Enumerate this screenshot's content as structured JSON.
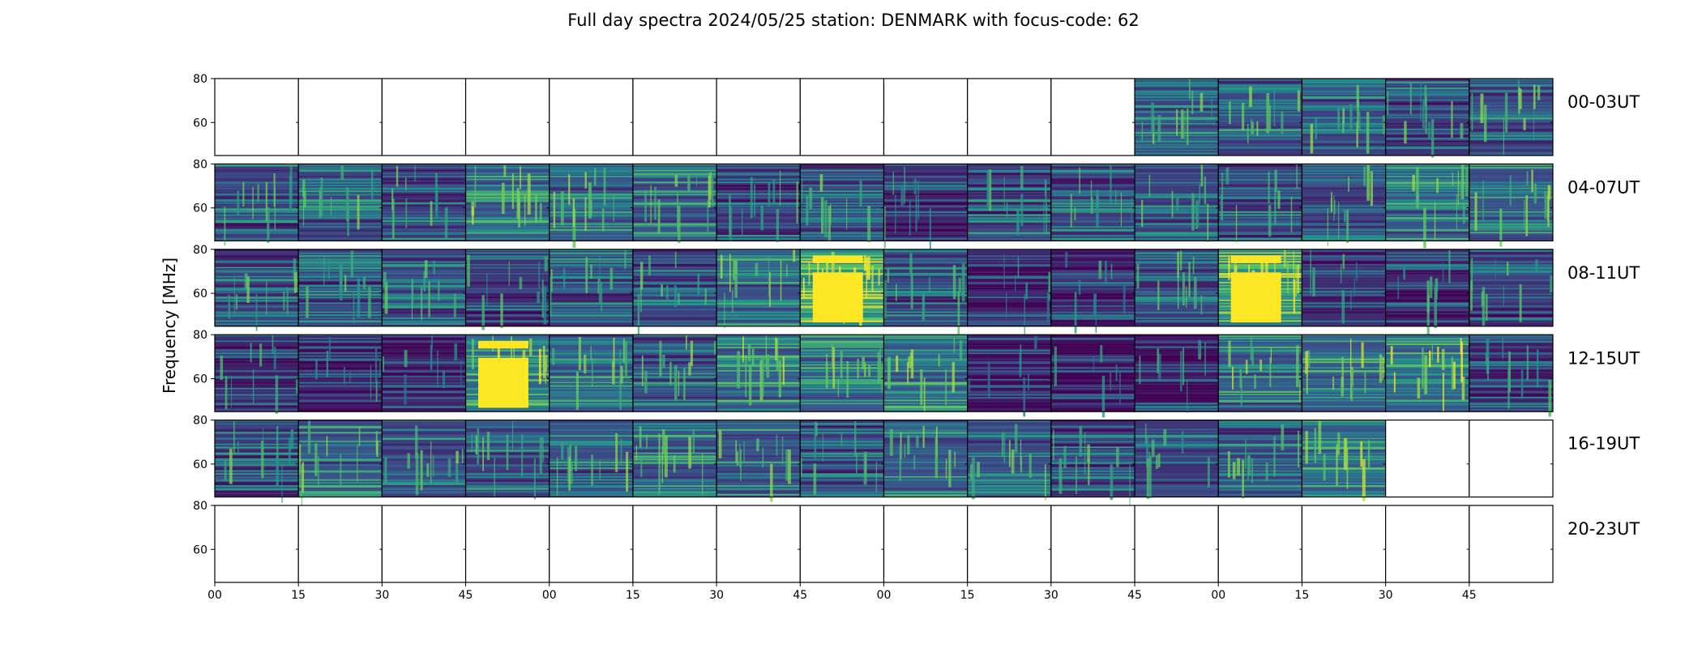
{
  "chart_data": {
    "type": "heatmap",
    "title": "Full day spectra 2024/05/25 station: DENMARK with focus-code: 62",
    "ylabel": "Frequency [MHz]",
    "xlabel": "",
    "ylim": [
      45,
      80
    ],
    "y_ticks": [
      60,
      80
    ],
    "x_ticks": [
      "00",
      "15",
      "30",
      "45",
      "00",
      "15",
      "30",
      "45",
      "00",
      "15",
      "30",
      "45",
      "00",
      "15",
      "30",
      "45"
    ],
    "colormap": [
      "#440154",
      "#3b528b",
      "#21918c",
      "#5ec962",
      "#fde725"
    ],
    "row_labels": [
      "00-03UT",
      "04-07UT",
      "08-11UT",
      "12-15UT",
      "16-19UT",
      "20-23UT"
    ],
    "panel_minutes": 15,
    "panels": [
      [
        null,
        null,
        null,
        null,
        null,
        null,
        null,
        null,
        null,
        null,
        null,
        0.35,
        0.35,
        0.35,
        0.3,
        0.35
      ],
      [
        0.3,
        0.35,
        0.3,
        0.45,
        0.4,
        0.4,
        0.3,
        0.3,
        0.2,
        0.3,
        0.3,
        0.3,
        0.3,
        0.35,
        0.4,
        0.4
      ],
      [
        0.3,
        0.3,
        0.3,
        0.25,
        0.3,
        0.3,
        0.4,
        0.7,
        0.3,
        0.15,
        0.15,
        0.3,
        0.65,
        0.2,
        0.2,
        0.25
      ],
      [
        0.2,
        0.15,
        0.15,
        0.55,
        0.4,
        0.35,
        0.45,
        0.45,
        0.45,
        0.1,
        0.1,
        0.15,
        0.4,
        0.45,
        0.5,
        0.2
      ],
      [
        0.3,
        0.4,
        0.35,
        0.35,
        0.35,
        0.4,
        0.4,
        0.3,
        0.4,
        0.35,
        0.3,
        0.3,
        0.35,
        0.45,
        null,
        null
      ],
      [
        null,
        null,
        null,
        null,
        null,
        null,
        null,
        null,
        null,
        null,
        null,
        null,
        null,
        null,
        null,
        null
      ]
    ]
  }
}
